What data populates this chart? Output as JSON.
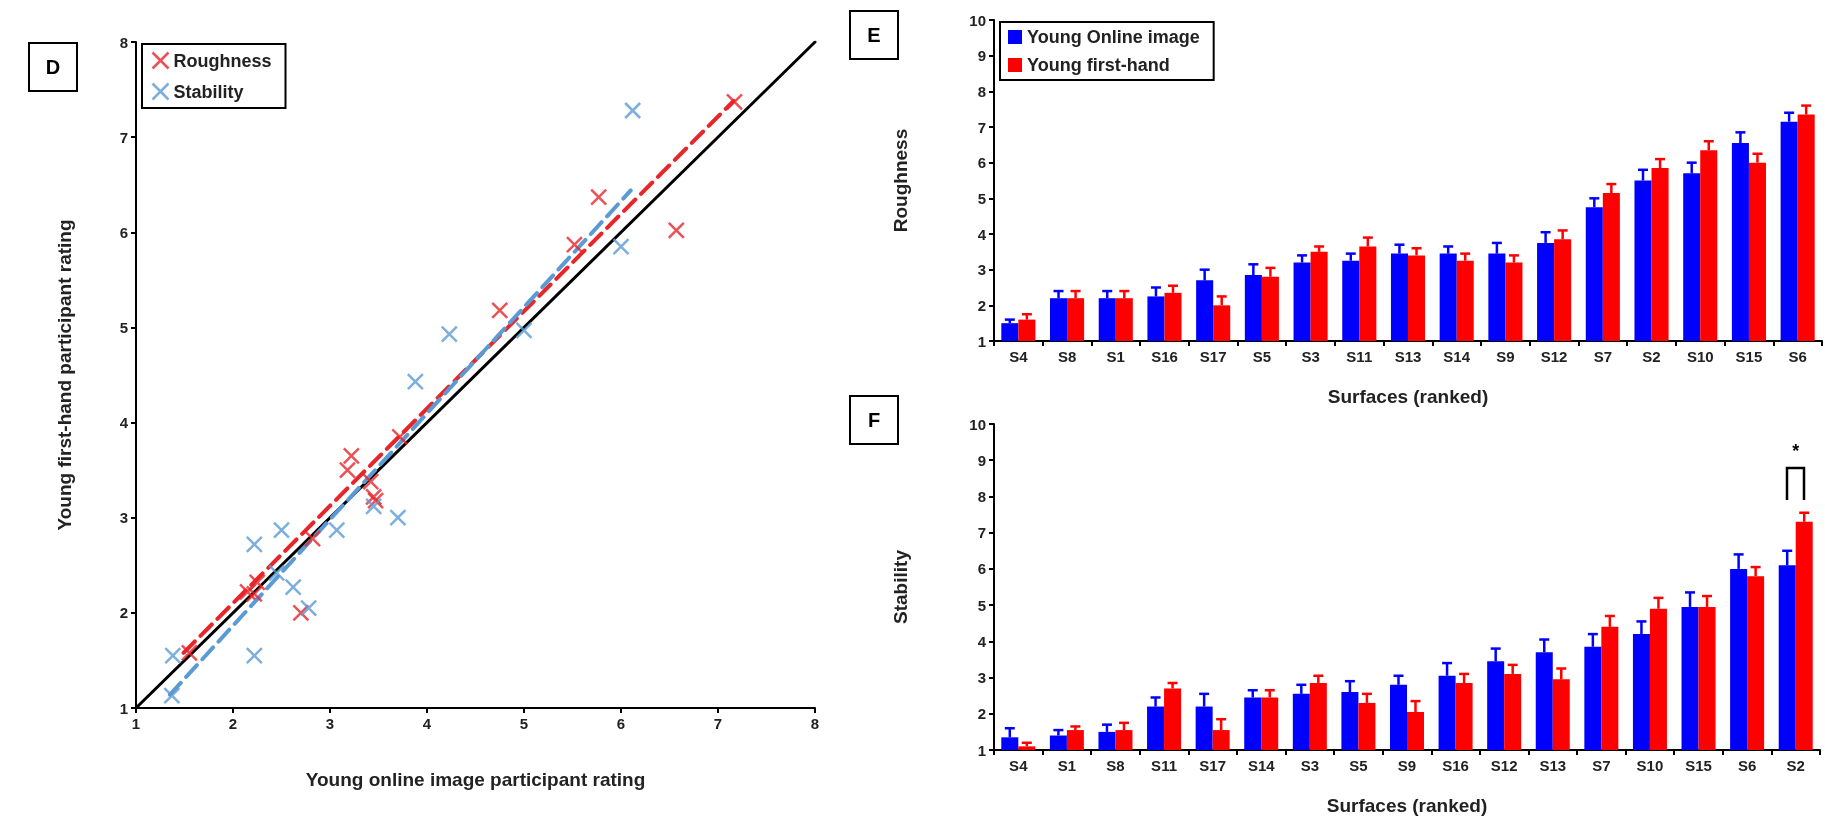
{
  "chart_data": [
    {
      "type": "scatter",
      "xlabel": "Young online image participant rating",
      "ylabel": "Young first-hand participant rating",
      "xlim": [
        1,
        8
      ],
      "ylim": [
        1,
        8
      ],
      "xticks": [
        1,
        2,
        3,
        4,
        5,
        6,
        7,
        8
      ],
      "yticks": [
        1,
        2,
        3,
        4,
        5,
        6,
        7,
        8
      ],
      "marker": "cross",
      "legend": "top left",
      "grid": false,
      "annotations": [
        "D"
      ],
      "series": [
        {
          "name": "Roughness",
          "color": "#e8262a",
          "x": [
            1.55,
            2.15,
            2.22,
            2.25,
            2.7,
            2.82,
            3.18,
            3.22,
            3.42,
            3.45,
            3.47,
            3.72,
            4.75,
            5.52,
            5.77,
            6.57,
            7.17
          ],
          "values": [
            1.58,
            2.22,
            2.2,
            2.32,
            2.0,
            2.78,
            3.5,
            3.65,
            3.38,
            3.22,
            3.18,
            3.85,
            5.18,
            5.87,
            6.37,
            6.02,
            7.37
          ]
        },
        {
          "name": "Stability",
          "color": "#5b9bd5",
          "x": [
            1.37,
            1.38,
            2.22,
            2.22,
            2.5,
            2.45,
            2.62,
            2.78,
            3.07,
            3.45,
            3.7,
            3.88,
            4.23,
            5.0,
            6.0,
            6.12
          ],
          "values": [
            1.13,
            1.55,
            1.55,
            2.72,
            2.87,
            2.42,
            2.27,
            2.05,
            2.87,
            3.12,
            3.0,
            4.43,
            4.93,
            4.97,
            5.85,
            7.28
          ]
        },
        {
          "type": "line",
          "color": "#000000",
          "marker": "none",
          "line_style": "solid",
          "x": [
            1,
            8
          ],
          "values": [
            1,
            8
          ]
        },
        {
          "type": "line",
          "color": "#e8262a",
          "marker": "none",
          "line_style": "dashed",
          "x": [
            1.49,
            7.16
          ],
          "values": [
            1.58,
            7.38
          ]
        },
        {
          "type": "line",
          "color": "#5b9bd5",
          "marker": "none",
          "line_style": "dashed",
          "x": [
            1.35,
            6.1
          ],
          "values": [
            1.14,
            6.44
          ]
        }
      ]
    },
    {
      "type": "bar",
      "xlabel": "Surfaces (ranked)",
      "ylabel": "Roughness",
      "ylim": [
        1,
        10
      ],
      "yticks": [
        1,
        2,
        3,
        4,
        5,
        6,
        7,
        8,
        9,
        10
      ],
      "legend": "top left",
      "grid": false,
      "annotations": [
        "E"
      ],
      "categories": [
        "S4",
        "S8",
        "S1",
        "S16",
        "S17",
        "S5",
        "S3",
        "S11",
        "S13",
        "S14",
        "S9",
        "S12",
        "S7",
        "S2",
        "S10",
        "S15",
        "S6"
      ],
      "series": [
        {
          "name": "Young Online image",
          "color": "#0000ff",
          "values": [
            1.5,
            2.2,
            2.2,
            2.25,
            2.7,
            2.85,
            3.2,
            3.25,
            3.45,
            3.45,
            3.45,
            3.75,
            4.75,
            5.5,
            5.7,
            6.55,
            7.15
          ],
          "errors": [
            0.1,
            0.2,
            0.2,
            0.25,
            0.3,
            0.3,
            0.2,
            0.2,
            0.25,
            0.2,
            0.3,
            0.3,
            0.25,
            0.3,
            0.3,
            0.3,
            0.25
          ]
        },
        {
          "name": "Young first-hand",
          "color": "#ff0000",
          "values": [
            1.6,
            2.2,
            2.2,
            2.35,
            2.0,
            2.8,
            3.5,
            3.65,
            3.4,
            3.25,
            3.2,
            3.85,
            5.15,
            5.85,
            6.35,
            6.0,
            7.35
          ],
          "errors": [
            0.15,
            0.2,
            0.2,
            0.2,
            0.25,
            0.25,
            0.15,
            0.25,
            0.2,
            0.2,
            0.2,
            0.25,
            0.25,
            0.25,
            0.25,
            0.25,
            0.25
          ]
        }
      ]
    },
    {
      "type": "bar",
      "xlabel": "Surfaces (ranked)",
      "ylabel": "Stability",
      "ylim": [
        1,
        10
      ],
      "yticks": [
        1,
        2,
        3,
        4,
        5,
        6,
        7,
        8,
        9,
        10
      ],
      "grid": false,
      "annotations": [
        "F",
        "*"
      ],
      "categories": [
        "S4",
        "S1",
        "S8",
        "S11",
        "S17",
        "S14",
        "S3",
        "S5",
        "S9",
        "S16",
        "S12",
        "S13",
        "S7",
        "S10",
        "S15",
        "S6",
        "S2"
      ],
      "series": [
        {
          "color": "#0000ff",
          "values": [
            1.35,
            1.4,
            1.5,
            2.2,
            2.2,
            2.45,
            2.55,
            2.6,
            2.8,
            3.05,
            3.45,
            3.7,
            3.85,
            4.2,
            4.95,
            6.0,
            6.1
          ],
          "errors": [
            0.25,
            0.15,
            0.2,
            0.25,
            0.35,
            0.2,
            0.25,
            0.3,
            0.25,
            0.35,
            0.35,
            0.35,
            0.35,
            0.35,
            0.4,
            0.4,
            0.4
          ]
        },
        {
          "color": "#ff0000",
          "values": [
            1.1,
            1.55,
            1.55,
            2.7,
            1.55,
            2.45,
            2.85,
            2.3,
            2.05,
            2.85,
            3.1,
            2.95,
            4.4,
            4.9,
            4.95,
            5.8,
            7.3
          ],
          "errors": [
            0.1,
            0.1,
            0.2,
            0.15,
            0.3,
            0.2,
            0.2,
            0.25,
            0.3,
            0.25,
            0.25,
            0.3,
            0.3,
            0.3,
            0.3,
            0.25,
            0.25
          ]
        }
      ]
    }
  ]
}
